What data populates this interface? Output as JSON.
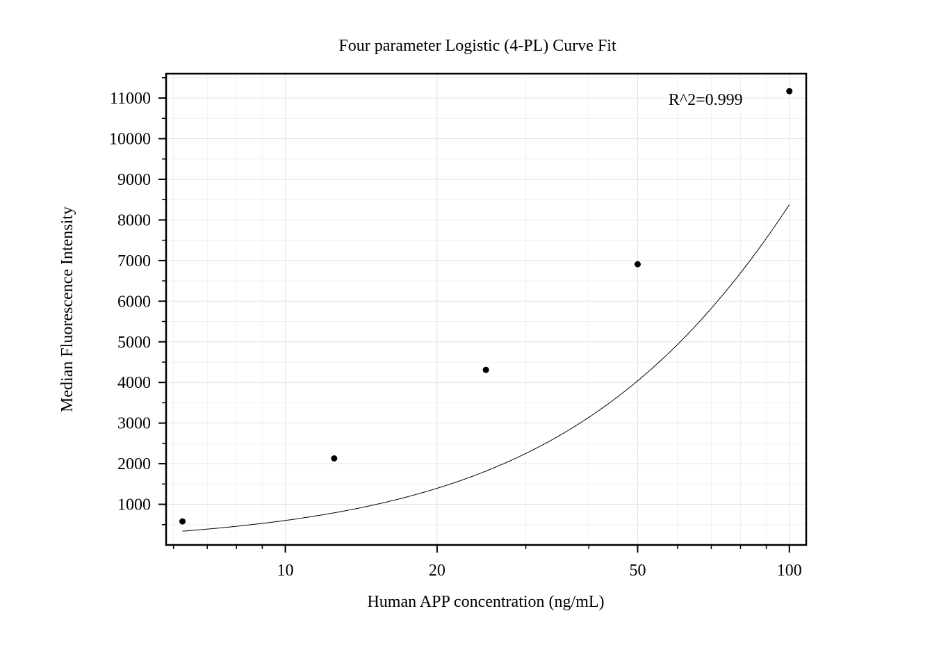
{
  "chart_data": {
    "type": "scatter",
    "title": "Four parameter Logistic (4-PL) Curve Fit",
    "xlabel": "Human APP concentration (ng/mL)",
    "ylabel": "Median Fluorescence Intensity",
    "x_scale": "log",
    "xlim": [
      5.8,
      108
    ],
    "ylim": [
      0,
      11600
    ],
    "x_ticks": [
      10,
      20,
      50,
      100
    ],
    "x_tick_labels": [
      "10",
      "20",
      "50",
      "100"
    ],
    "y_ticks": [
      1000,
      2000,
      3000,
      4000,
      5000,
      6000,
      7000,
      8000,
      9000,
      10000,
      11000
    ],
    "y_tick_labels": [
      "1000",
      "2000",
      "3000",
      "4000",
      "5000",
      "6000",
      "7000",
      "8000",
      "9000",
      "10000",
      "11000"
    ],
    "grid": true,
    "series": [
      {
        "kind": "points",
        "x": [
          6.25,
          12.5,
          25,
          50,
          100
        ],
        "y": [
          580,
          2130,
          4310,
          6910,
          11170
        ],
        "color": "#000000"
      },
      {
        "kind": "fit-curve",
        "model": "4-PL",
        "params": {
          "A": 0,
          "B": 1.238,
          "C": 292.4,
          "D": 40000
        },
        "color": "#000000"
      }
    ],
    "annotations": [
      {
        "text": "R^2=0.999",
        "x": 60,
        "y": 10970
      }
    ]
  }
}
